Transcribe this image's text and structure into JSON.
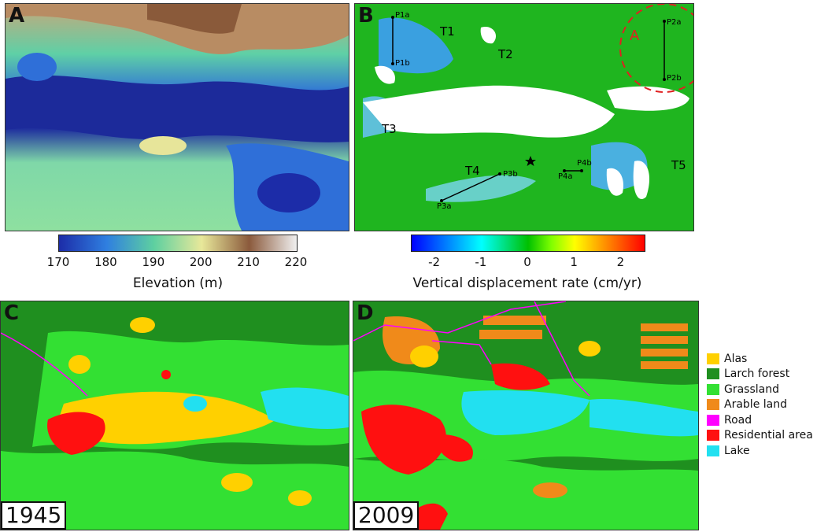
{
  "panels": {
    "a": {
      "letter": "A"
    },
    "b": {
      "letter": "B"
    },
    "c": {
      "letter": "C",
      "year": "1945"
    },
    "d": {
      "letter": "D",
      "year": "2009"
    }
  },
  "elevation_colorbar": {
    "ticks": [
      "170",
      "180",
      "190",
      "200",
      "210",
      "220"
    ],
    "label": "Elevation (m)",
    "colors": [
      "#1c2ca8",
      "#2f7fe0",
      "#5ed0a0",
      "#e8e89a",
      "#8b5a3c",
      "#f0f0f0"
    ]
  },
  "displacement_colorbar": {
    "ticks": [
      "-2",
      "-1",
      "0",
      "1",
      "2"
    ],
    "label": "Vertical displacement rate (cm/yr)",
    "colors": [
      "#0000ff",
      "#00ffff",
      "#00c000",
      "#ffff00",
      "#ff0000"
    ]
  },
  "map_b_labels": {
    "zones": [
      "T1",
      "T2",
      "T3",
      "T4",
      "T5"
    ],
    "points": [
      "P1a",
      "P1b",
      "P2a",
      "P2b",
      "P3a",
      "P3b",
      "P4a",
      "P4b"
    ],
    "circle_label": "A"
  },
  "legend": [
    {
      "label": "Alas",
      "color": "#ffd000"
    },
    {
      "label": "Larch forest",
      "color": "#1f8f1f"
    },
    {
      "label": "Grassland",
      "color": "#33e033"
    },
    {
      "label": "Arable land",
      "color": "#f08a1a"
    },
    {
      "label": "Road",
      "color": "#ff00ff"
    },
    {
      "label": "Residential area",
      "color": "#ff1010"
    },
    {
      "label": "Lake",
      "color": "#22e0f0"
    }
  ]
}
